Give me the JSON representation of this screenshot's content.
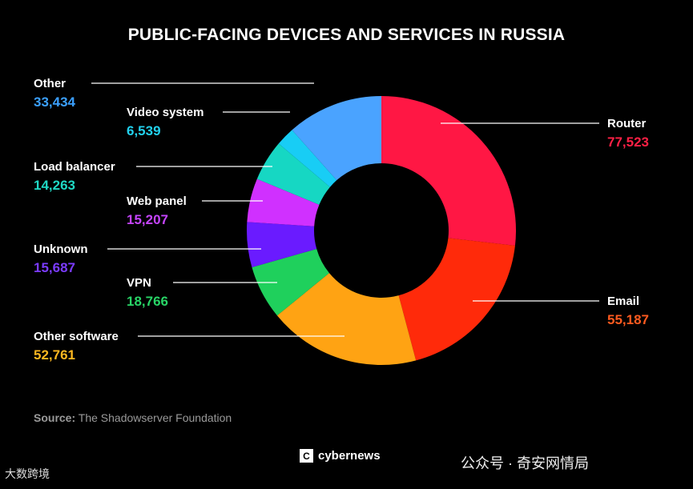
{
  "title": "PUBLIC-FACING DEVICES AND SERVICES IN RUSSIA",
  "chart_data": {
    "type": "pie",
    "style": "donut",
    "title": "PUBLIC-FACING DEVICES AND SERVICES IN RUSSIA",
    "categories": [
      "Router",
      "Email",
      "Other software",
      "VPN",
      "Unknown",
      "Web panel",
      "Load balancer",
      "Video system",
      "Other"
    ],
    "values": [
      77523,
      55187,
      52761,
      18766,
      15687,
      15207,
      14263,
      6539,
      33434
    ],
    "value_labels": [
      "77,523",
      "55,187",
      "52,761",
      "18,766",
      "15,687",
      "15,207",
      "14,263",
      "6,539",
      "33,434"
    ],
    "colors": [
      "#ff1744",
      "#ff2a0a",
      "#ffa313",
      "#1fd05c",
      "#6a1bff",
      "#d030ff",
      "#16d7c3",
      "#18cdf5",
      "#4aa3ff"
    ],
    "value_colors": [
      "#ff2045",
      "#ff5a1f",
      "#ffb820",
      "#28d466",
      "#7b3bff",
      "#c544ff",
      "#1fd8c4",
      "#22d1ee",
      "#3ba0ff"
    ]
  },
  "source": {
    "label": "Source:",
    "text": "The Shadowserver Foundation"
  },
  "brand": {
    "icon": "C",
    "name": "cybernews"
  },
  "watermarks": {
    "left": "大数跨境",
    "right": "公众号 · 奇安网情局"
  }
}
